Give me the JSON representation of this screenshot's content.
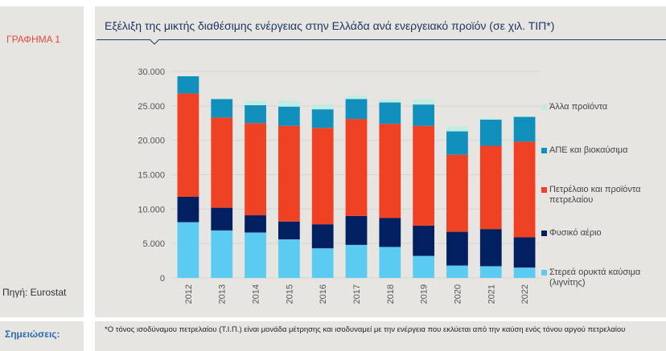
{
  "left_panel": {
    "graph_label": "ΓΡΑΦΗΜΑ 1",
    "source": "Πηγή: Eurostat"
  },
  "notes": {
    "label": "Σημειώσεις:",
    "text": "*Ο τόνος ισοδύναμου πετρελαίου (Τ.Ι.Π.) είναι μονάδα μέτρησης και ισοδυναμεί με την ενέργεια που εκλύεται από την καύση ενός τόνου αργού πετρελαίου"
  },
  "colors": {
    "graph_label": "#e84a3a",
    "title": "#1f3763",
    "notes_label": "#2b6cb0",
    "panel_bg": "#e6e5e1"
  },
  "chart_data": {
    "type": "bar",
    "stacked": true,
    "title": "Εξέλιξη της μικτής διαθέσιμης ενέργειας στην Ελλάδα ανά ενεργειακό προϊόν (σε χιλ. ΤΙΠ*)",
    "xlabel": "",
    "ylabel": "",
    "ylim": [
      0,
      30000
    ],
    "yticks": [
      0,
      5000,
      10000,
      15000,
      20000,
      25000,
      30000
    ],
    "ytick_labels": [
      "0",
      "5.000",
      "10.000",
      "15.000",
      "20.000",
      "25.000",
      "30.000"
    ],
    "grid": true,
    "legend_position": "right",
    "categories": [
      "2012",
      "2013",
      "2014",
      "2015",
      "2016",
      "2017",
      "2018",
      "2019",
      "2020",
      "2021",
      "2022"
    ],
    "series": [
      {
        "name": "Στερεά ορυκτά καύσιμα (λιγνίτης)",
        "color": "#5bcbf1",
        "values": [
          8100,
          6900,
          6600,
          5600,
          4300,
          4800,
          4500,
          3200,
          1800,
          1700,
          1500
        ]
      },
      {
        "name": "Φυσικό αέριο",
        "color": "#02205f",
        "values": [
          3700,
          3300,
          2500,
          2600,
          3500,
          4200,
          4200,
          4400,
          4900,
          5400,
          4400
        ]
      },
      {
        "name": "Πετρέλαιο και προϊόντα πετρελαίου",
        "color": "#ef4123",
        "values": [
          15000,
          13100,
          13400,
          13900,
          14000,
          14100,
          13700,
          14500,
          11200,
          12100,
          13900
        ]
      },
      {
        "name": "ΑΠΕ και βιοκαύσιμα",
        "color": "#1190be",
        "values": [
          2500,
          2700,
          2600,
          2800,
          2700,
          2900,
          3100,
          3100,
          3400,
          3800,
          3600
        ]
      },
      {
        "name": "Άλλα προϊόντα",
        "color": "#c0ece3",
        "values": [
          100,
          100,
          700,
          900,
          700,
          500,
          500,
          800,
          700,
          200,
          100
        ]
      }
    ],
    "legend": [
      {
        "label": "Άλλα προϊόντα",
        "color": "#c0ece3"
      },
      {
        "label": "ΑΠΕ και βιοκαύσιμα",
        "color": "#1190be"
      },
      {
        "label": "Πετρέλαιο και προϊόντα πετρελαίου",
        "color": "#ef4123"
      },
      {
        "label": "Φυσικό αέριο",
        "color": "#02205f"
      },
      {
        "label": "Στερεά ορυκτά καύσιμα (λιγνίτης)",
        "color": "#5bcbf1"
      }
    ]
  }
}
